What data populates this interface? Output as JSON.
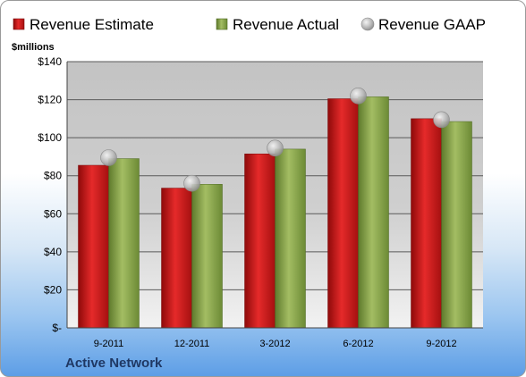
{
  "company": "Active Network",
  "chart_data": {
    "type": "bar",
    "unit_label": "$millions",
    "categories": [
      "9-2011",
      "12-2011",
      "3-2012",
      "6-2012",
      "9-2012"
    ],
    "series": [
      {
        "name": "Revenue Estimate",
        "kind": "bar",
        "color": "#d11a1a",
        "values": [
          85.5,
          73.5,
          91.5,
          120.5,
          110.0
        ]
      },
      {
        "name": "Revenue Actual",
        "kind": "bar",
        "color": "#8ea84e",
        "values": [
          89.0,
          75.5,
          94.0,
          121.5,
          108.5
        ]
      },
      {
        "name": "Revenue GAAP",
        "kind": "marker",
        "color": "#b4b4b4",
        "values": [
          89.5,
          76.0,
          94.5,
          122.0,
          109.5
        ]
      }
    ],
    "ylim": [
      0,
      140
    ],
    "yticks": [
      0,
      20,
      40,
      60,
      80,
      100,
      120,
      140
    ],
    "ytick_labels": [
      "$-",
      "$20",
      "$40",
      "$60",
      "$80",
      "$100",
      "$120",
      "$140"
    ],
    "grid": true,
    "legend_position": "top"
  }
}
